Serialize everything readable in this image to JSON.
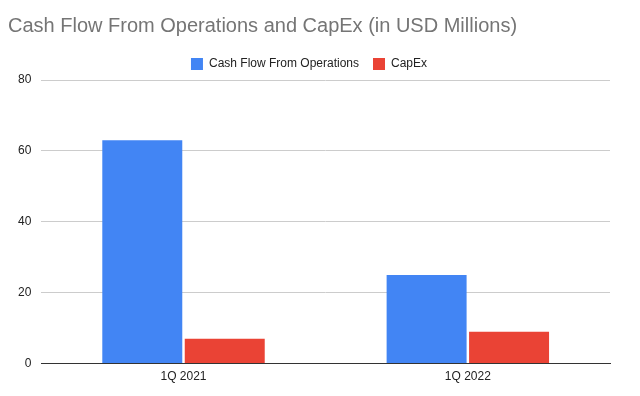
{
  "chart_data": {
    "type": "bar",
    "title": "Cash Flow From Operations and CapEx (in USD Millions)",
    "categories": [
      "1Q 2021",
      "1Q 2022"
    ],
    "series": [
      {
        "name": "Cash Flow From Operations",
        "color": "#4285f4",
        "values": [
          63,
          25
        ]
      },
      {
        "name": "CapEx",
        "color": "#ea4335",
        "values": [
          7,
          9
        ]
      }
    ],
    "ylim": [
      0,
      80
    ],
    "yticks": [
      0,
      20,
      40,
      60,
      80
    ],
    "grid": true,
    "legend": "top"
  }
}
